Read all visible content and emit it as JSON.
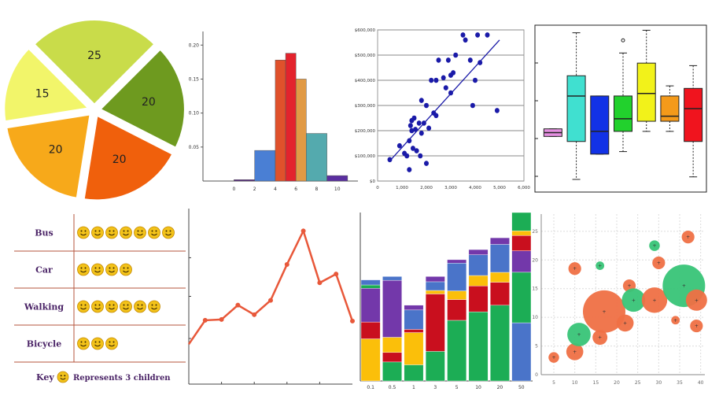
{
  "chart_data": [
    {
      "type": "pie",
      "values": [
        25,
        20,
        20,
        20,
        15
      ],
      "colors": [
        "#c9dc4a",
        "#6e9a1f",
        "#f0600c",
        "#f7a91a",
        "#f2f56a"
      ]
    },
    {
      "type": "bar",
      "bins": [
        [
          0,
          2
        ],
        [
          2,
          4
        ],
        [
          4,
          5
        ],
        [
          5,
          6
        ],
        [
          6,
          7
        ],
        [
          7,
          9
        ],
        [
          9,
          11
        ]
      ],
      "values": [
        0.002,
        0.045,
        0.178,
        0.188,
        0.15,
        0.07,
        0.008
      ],
      "colors": [
        "#5b2c84",
        "#4a7fd4",
        "#e0512b",
        "#e3232d",
        "#e19a45",
        "#54aaae",
        "#5a2ea0"
      ],
      "xticks": [
        "0",
        "2",
        "4",
        "6",
        "8",
        "10"
      ],
      "yticks": [
        "0.05",
        "0.10",
        "0.15",
        "0.20"
      ],
      "xlim": [
        -3,
        12
      ],
      "ylim": [
        0,
        0.22
      ]
    },
    {
      "type": "scatter",
      "x": [
        500,
        900,
        1100,
        1200,
        1300,
        1300,
        1350,
        1400,
        1400,
        1450,
        1500,
        1550,
        1600,
        1700,
        1750,
        1800,
        1800,
        1900,
        2000,
        2000,
        2100,
        2200,
        2300,
        2400,
        2400,
        2500,
        2700,
        2800,
        2900,
        3000,
        3000,
        3100,
        3200,
        3500,
        3600,
        3800,
        3900,
        4000,
        4100,
        4200,
        4500,
        4900
      ],
      "y": [
        85000,
        140000,
        110000,
        100000,
        45000,
        160000,
        220000,
        200000,
        240000,
        130000,
        250000,
        205000,
        120000,
        230000,
        100000,
        320000,
        190000,
        230000,
        300000,
        70000,
        210000,
        400000,
        270000,
        260000,
        400000,
        480000,
        410000,
        370000,
        480000,
        350000,
        420000,
        430000,
        500000,
        580000,
        560000,
        480000,
        300000,
        400000,
        580000,
        470000,
        580000,
        280000
      ],
      "trendline": [
        [
          500,
          80000
        ],
        [
          5000,
          560000
        ]
      ],
      "xticks": [
        "0",
        "1,000",
        "2,000",
        "3,000",
        "4,000",
        "5,000",
        "6,000"
      ],
      "yticks": [
        "$0",
        "$100,000",
        "$200,000",
        "$300,000",
        "$400,000",
        "$500,000",
        "$600,000"
      ],
      "xlim": [
        0,
        6000
      ],
      "ylim": [
        0,
        600000
      ],
      "grid": true
    },
    {
      "type": "box",
      "boxes": [
        {
          "color": "#e48fe0",
          "min": 22,
          "q1": 22,
          "median": 23.5,
          "q3": 25,
          "max": 25,
          "outliers": []
        },
        {
          "color": "#40e0d0",
          "min": 5,
          "q1": 20,
          "median": 38,
          "q3": 46,
          "max": 63,
          "outliers": []
        },
        {
          "color": "#1232e6",
          "min": 15,
          "q1": 15,
          "median": 24,
          "q3": 38,
          "max": 38,
          "outliers": []
        },
        {
          "color": "#22d12d",
          "min": 16,
          "q1": 24,
          "median": 29,
          "q3": 38,
          "max": 55,
          "outliers": [
            60
          ]
        },
        {
          "color": "#f2f21a",
          "min": 24,
          "q1": 28,
          "median": 39,
          "q3": 51,
          "max": 64,
          "outliers": []
        },
        {
          "color": "#f49a1a",
          "min": 24,
          "q1": 28,
          "median": 30,
          "q3": 38,
          "max": 42,
          "outliers": []
        },
        {
          "color": "#f0141e",
          "min": 6,
          "q1": 20,
          "median": 33,
          "q3": 41,
          "max": 50,
          "outliers": []
        }
      ],
      "ylim": [
        0,
        66
      ]
    },
    {
      "type": "pictograph",
      "rows": [
        {
          "label": "Bus",
          "icons": 7
        },
        {
          "label": "Car",
          "icons": 4
        },
        {
          "label": "Walking",
          "icons": 6
        },
        {
          "label": "Bicycle",
          "icons": 3
        }
      ],
      "key_label": "Key :",
      "key_text": "Represents 3 children",
      "icon_color": "#f2c21a"
    },
    {
      "type": "line",
      "x": [
        0,
        1,
        2,
        3,
        4,
        5,
        6,
        7,
        8,
        9,
        10
      ],
      "values": [
        50,
        80,
        81,
        99,
        87,
        105,
        150,
        192,
        127,
        138,
        79
      ],
      "color": "#e8583a",
      "ylim": [
        0,
        220
      ]
    },
    {
      "type": "bar",
      "stacked": true,
      "categories": [
        "0.1",
        "0.5",
        "1",
        "3",
        "5",
        "10",
        "20",
        "50"
      ],
      "segment_colors": [
        "#fbbf0a",
        "#c90f1e",
        "#7338aa",
        "#1cad55",
        "#4a74c9"
      ],
      "stacks": [
        [
          [
            0.25,
            "#fbbf0a"
          ],
          [
            0.1,
            "#c90f1e"
          ],
          [
            0.2,
            "#7338aa"
          ],
          [
            0.02,
            "#1cad55"
          ],
          [
            0.03,
            "#4a74c9"
          ]
        ],
        [
          [
            0.1,
            "#1cad55"
          ],
          [
            0.05,
            "#c90f1e"
          ],
          [
            0.08,
            "#fbbf0a"
          ],
          [
            0.3,
            "#7338aa"
          ],
          [
            0.02,
            "#4a74c9"
          ]
        ],
        [
          [
            0.1,
            "#1cad55"
          ],
          [
            0.2,
            "#fbbf0a"
          ],
          [
            0.02,
            "#c90f1e"
          ],
          [
            0.12,
            "#4a74c9"
          ],
          [
            0.03,
            "#7338aa"
          ]
        ],
        [
          [
            0.17,
            "#1cad55"
          ],
          [
            0.33,
            "#c90f1e"
          ],
          [
            0.02,
            "#fbbf0a"
          ],
          [
            0.05,
            "#4a74c9"
          ],
          [
            0.03,
            "#7338aa"
          ]
        ],
        [
          [
            0.35,
            "#1cad55"
          ],
          [
            0.12,
            "#c90f1e"
          ],
          [
            0.05,
            "#fbbf0a"
          ],
          [
            0.16,
            "#4a74c9"
          ],
          [
            0.02,
            "#7338aa"
          ]
        ],
        [
          [
            0.4,
            "#1cad55"
          ],
          [
            0.15,
            "#c90f1e"
          ],
          [
            0.06,
            "#fbbf0a"
          ],
          [
            0.12,
            "#4a74c9"
          ],
          [
            0.03,
            "#7338aa"
          ]
        ],
        [
          [
            0.46,
            "#1cad55"
          ],
          [
            0.14,
            "#c90f1e"
          ],
          [
            0.06,
            "#fbbf0a"
          ],
          [
            0.17,
            "#4a74c9"
          ],
          [
            0.04,
            "#7338aa"
          ]
        ],
        [
          [
            0.38,
            "#4a74c9"
          ],
          [
            0.33,
            "#1cad55"
          ],
          [
            0.14,
            "#7338aa"
          ],
          [
            0.1,
            "#c90f1e"
          ],
          [
            0.03,
            "#fbbf0a"
          ],
          [
            0.12,
            "#1cad55"
          ]
        ]
      ],
      "ylim": [
        0,
        1
      ]
    },
    {
      "type": "bubble",
      "points": [
        {
          "x": 5,
          "y": 3,
          "size": 5,
          "color": "#ef7045"
        },
        {
          "x": 10,
          "y": 4,
          "size": 8,
          "color": "#ef7045"
        },
        {
          "x": 10,
          "y": 18.5,
          "size": 6,
          "color": "#ef7045"
        },
        {
          "x": 11,
          "y": 7,
          "size": 11,
          "color": "#38c477"
        },
        {
          "x": 16,
          "y": 6.5,
          "size": 7,
          "color": "#ef7045"
        },
        {
          "x": 17,
          "y": 11,
          "size": 20,
          "color": "#ef7045"
        },
        {
          "x": 16,
          "y": 19,
          "size": 4,
          "color": "#38c477"
        },
        {
          "x": 22,
          "y": 9,
          "size": 8,
          "color": "#ef7045"
        },
        {
          "x": 23,
          "y": 15.5,
          "size": 6,
          "color": "#ef7045"
        },
        {
          "x": 24,
          "y": 13,
          "size": 11,
          "color": "#38c477"
        },
        {
          "x": 29,
          "y": 22.5,
          "size": 5,
          "color": "#38c477"
        },
        {
          "x": 30,
          "y": 19.5,
          "size": 6,
          "color": "#ef7045"
        },
        {
          "x": 29,
          "y": 13,
          "size": 12,
          "color": "#ef7045"
        },
        {
          "x": 34,
          "y": 9.5,
          "size": 4,
          "color": "#ef7045"
        },
        {
          "x": 36,
          "y": 15.5,
          "size": 20,
          "color": "#38c477"
        },
        {
          "x": 37,
          "y": 24,
          "size": 6,
          "color": "#ef7045"
        },
        {
          "x": 39,
          "y": 13,
          "size": 10,
          "color": "#ef7045"
        },
        {
          "x": 39,
          "y": 8.5,
          "size": 6,
          "color": "#ef7045"
        }
      ],
      "xticks": [
        "5",
        "10",
        "15",
        "20",
        "25",
        "30",
        "35",
        "40"
      ],
      "yticks": [
        "0",
        "5",
        "10",
        "15",
        "20",
        "25"
      ],
      "xlim": [
        2,
        41
      ],
      "ylim": [
        0,
        28
      ]
    }
  ]
}
